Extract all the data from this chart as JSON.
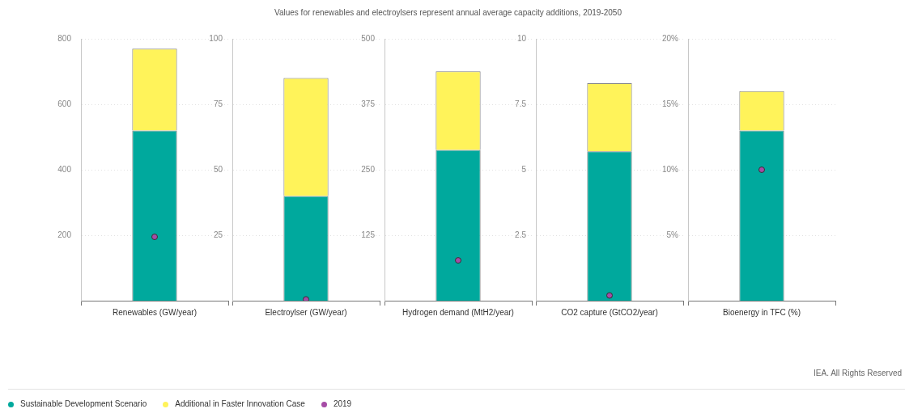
{
  "chart_data": [
    {
      "type": "bar",
      "categories": [
        "Renewables (GW/year)"
      ],
      "stacked": true,
      "legend": "bottom",
      "grid": "y",
      "ylim": [
        0,
        800
      ],
      "yticks": [
        200,
        400,
        600,
        800
      ],
      "series": [
        {
          "name": "Sustainable Development Scenario",
          "color": "#00a99d",
          "values": [
            520
          ]
        },
        {
          "name": "Additional in Faster Innovation Case",
          "color": "#fff35a",
          "values": [
            250
          ]
        },
        {
          "name": "2019",
          "type": "scatter",
          "color": "#a64ca6",
          "x": [
            "Renewables (GW/year)"
          ],
          "values": [
            195
          ]
        }
      ]
    },
    {
      "type": "bar",
      "categories": [
        "Electroylser (GW/year)"
      ],
      "stacked": true,
      "grid": "y",
      "ylim": [
        0,
        100
      ],
      "yticks": [
        25,
        50,
        75,
        100
      ],
      "series": [
        {
          "color": "#00a99d",
          "values": [
            40
          ]
        },
        {
          "color": "#fff35a",
          "values": [
            45
          ]
        },
        {
          "type": "scatter",
          "color": "#a64ca6",
          "x": [
            "Electroylser (GW/year)"
          ],
          "values": [
            0.5
          ]
        }
      ]
    },
    {
      "type": "bar",
      "title": "Values for renewables and electroylsers represent annual average capacity additions, 2019-2050",
      "categories": [
        "Hydrogen demand (MtH2/year)"
      ],
      "stacked": true,
      "grid": "y",
      "ylim": [
        0,
        500
      ],
      "yticks": [
        125,
        250,
        375,
        500
      ],
      "series": [
        {
          "color": "#00a99d",
          "values": [
            288
          ]
        },
        {
          "color": "#fff35a",
          "values": [
            150
          ]
        },
        {
          "type": "scatter",
          "color": "#a64ca6",
          "x": [
            "Hydrogen demand (MtH2/year)"
          ],
          "values": [
            77
          ]
        }
      ]
    },
    {
      "type": "bar",
      "categories": [
        "CO2 capture (GtCO2/year)"
      ],
      "stacked": true,
      "grid": "y",
      "ylim": [
        0,
        10
      ],
      "yticks": [
        2.5,
        5,
        7.5,
        10
      ],
      "series": [
        {
          "color": "#00a99d",
          "values": [
            5.7
          ]
        },
        {
          "color": "#fff35a",
          "values": [
            2.6
          ]
        },
        {
          "type": "scatter",
          "color": "#a64ca6",
          "x": [
            "CO2 capture (GtCO2/year)"
          ],
          "values": [
            0.2
          ]
        }
      ]
    },
    {
      "type": "bar",
      "categories": [
        "Bioenergy in TFC (%)"
      ],
      "stacked": true,
      "grid": "y",
      "ylim": [
        0,
        20
      ],
      "yticks": [
        {
          "value": 5,
          "label": "5%"
        },
        {
          "value": 10,
          "label": "10%"
        },
        {
          "value": 15,
          "label": "15%"
        },
        {
          "value": 20,
          "label": "20%"
        }
      ],
      "annotations": [
        "IEA. All Rights Reserved"
      ],
      "series": [
        {
          "color": "#00a99d",
          "values": [
            13
          ]
        },
        {
          "color": "#fff35a",
          "values": [
            3
          ]
        },
        {
          "type": "scatter",
          "color": "#a64ca6",
          "x": [
            "Bioenergy in TFC (%)"
          ],
          "values": [
            10
          ]
        }
      ]
    }
  ]
}
